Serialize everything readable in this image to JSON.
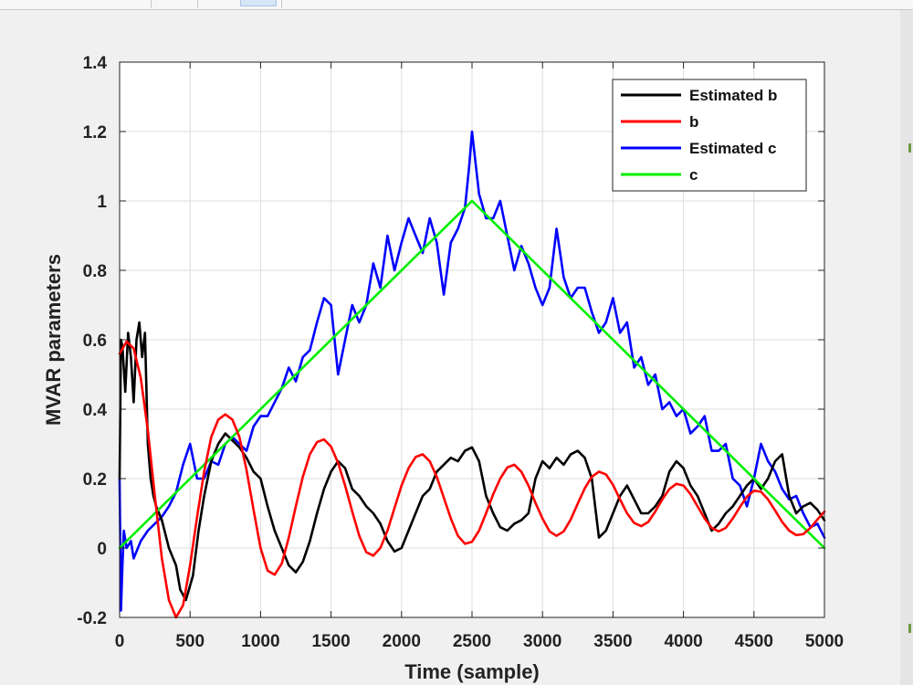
{
  "window": {
    "accent": "#d6e6f7"
  },
  "toolbar": {
    "tools": [
      {
        "name": "brush-icon"
      },
      {
        "name": "data-tips-icon"
      },
      {
        "name": "pan-icon"
      },
      {
        "name": "zoom-in-icon"
      },
      {
        "name": "zoom-out-icon"
      },
      {
        "name": "home-icon"
      }
    ],
    "icon_color": "#b8b8b8"
  },
  "chart_data": {
    "type": "line",
    "title": "",
    "xlabel": "Time (sample)",
    "ylabel": "MVAR parameters",
    "xlim": [
      0,
      5000
    ],
    "ylim": [
      -0.2,
      1.4
    ],
    "xticks": [
      0,
      500,
      1000,
      1500,
      2000,
      2500,
      3000,
      3500,
      4000,
      4500,
      5000
    ],
    "yticks": [
      -0.2,
      0,
      0.2,
      0.4,
      0.6,
      0.8,
      1,
      1.2,
      1.4
    ],
    "grid": true,
    "legend_position": "top-right",
    "series": [
      {
        "name": "Estimated b",
        "color": "#000000",
        "x": [
          0,
          10,
          20,
          40,
          60,
          80,
          100,
          120,
          140,
          160,
          180,
          200,
          220,
          240,
          260,
          300,
          350,
          400,
          430,
          470,
          520,
          560,
          600,
          650,
          700,
          750,
          800,
          850,
          900,
          950,
          1000,
          1050,
          1100,
          1150,
          1200,
          1250,
          1300,
          1350,
          1400,
          1450,
          1500,
          1550,
          1600,
          1650,
          1700,
          1750,
          1800,
          1850,
          1900,
          1950,
          2000,
          2050,
          2100,
          2150,
          2200,
          2250,
          2300,
          2350,
          2400,
          2450,
          2500,
          2550,
          2600,
          2650,
          2700,
          2750,
          2800,
          2850,
          2900,
          2950,
          3000,
          3050,
          3100,
          3150,
          3200,
          3250,
          3300,
          3350,
          3400,
          3450,
          3500,
          3550,
          3600,
          3650,
          3700,
          3750,
          3800,
          3850,
          3900,
          3950,
          4000,
          4050,
          4100,
          4150,
          4200,
          4250,
          4300,
          4350,
          4400,
          4450,
          4500,
          4550,
          4600,
          4650,
          4700,
          4750,
          4800,
          4850,
          4900,
          4950,
          5000
        ],
        "y": [
          0.2,
          0.6,
          0.58,
          0.45,
          0.62,
          0.55,
          0.42,
          0.6,
          0.65,
          0.55,
          0.62,
          0.3,
          0.2,
          0.15,
          0.12,
          0.08,
          0.0,
          -0.05,
          -0.12,
          -0.15,
          -0.08,
          0.05,
          0.15,
          0.25,
          0.3,
          0.33,
          0.31,
          0.29,
          0.26,
          0.22,
          0.2,
          0.12,
          0.05,
          0.0,
          -0.05,
          -0.07,
          -0.04,
          0.02,
          0.1,
          0.17,
          0.22,
          0.25,
          0.23,
          0.17,
          0.15,
          0.12,
          0.1,
          0.07,
          0.02,
          -0.01,
          0.0,
          0.05,
          0.1,
          0.15,
          0.17,
          0.22,
          0.24,
          0.26,
          0.25,
          0.28,
          0.29,
          0.25,
          0.15,
          0.1,
          0.06,
          0.05,
          0.07,
          0.08,
          0.1,
          0.2,
          0.25,
          0.23,
          0.26,
          0.24,
          0.27,
          0.28,
          0.26,
          0.2,
          0.03,
          0.05,
          0.1,
          0.15,
          0.18,
          0.14,
          0.1,
          0.1,
          0.12,
          0.15,
          0.22,
          0.25,
          0.23,
          0.18,
          0.15,
          0.1,
          0.05,
          0.07,
          0.1,
          0.12,
          0.15,
          0.18,
          0.2,
          0.17,
          0.2,
          0.25,
          0.27,
          0.15,
          0.1,
          0.12,
          0.13,
          0.11,
          0.08
        ]
      },
      {
        "name": "b",
        "color": "#ff0000",
        "x": [
          0,
          50,
          100,
          150,
          200,
          250,
          300,
          350,
          400,
          450,
          500,
          550,
          600,
          650,
          700,
          750,
          800,
          850,
          900,
          950,
          1000,
          1050,
          1100,
          1150,
          1200,
          1250,
          1300,
          1350,
          1400,
          1450,
          1500,
          1550,
          1600,
          1650,
          1700,
          1750,
          1800,
          1850,
          1900,
          1950,
          2000,
          2050,
          2100,
          2150,
          2200,
          2250,
          2300,
          2350,
          2400,
          2450,
          2500,
          2550,
          2600,
          2650,
          2700,
          2750,
          2800,
          2850,
          2900,
          2950,
          3000,
          3050,
          3100,
          3150,
          3200,
          3250,
          3300,
          3350,
          3400,
          3450,
          3500,
          3550,
          3600,
          3650,
          3700,
          3750,
          3800,
          3850,
          3900,
          3950,
          4000,
          4050,
          4100,
          4150,
          4200,
          4250,
          4300,
          4350,
          4400,
          4450,
          4500,
          4550,
          4600,
          4650,
          4700,
          4750,
          4800,
          4850,
          4900,
          4950,
          5000
        ],
        "y": [
          0.56,
          0.595,
          0.575,
          0.49,
          0.34,
          0.15,
          -0.03,
          -0.15,
          -0.2,
          -0.165,
          -0.05,
          0.09,
          0.22,
          0.32,
          0.37,
          0.385,
          0.37,
          0.32,
          0.225,
          0.11,
          0.0,
          -0.065,
          -0.077,
          -0.045,
          0.03,
          0.12,
          0.205,
          0.27,
          0.305,
          0.313,
          0.292,
          0.245,
          0.18,
          0.105,
          0.035,
          -0.012,
          -0.022,
          0.0,
          0.05,
          0.115,
          0.18,
          0.23,
          0.262,
          0.27,
          0.25,
          0.205,
          0.145,
          0.085,
          0.035,
          0.012,
          0.018,
          0.05,
          0.1,
          0.155,
          0.2,
          0.232,
          0.24,
          0.22,
          0.18,
          0.13,
          0.085,
          0.048,
          0.035,
          0.048,
          0.082,
          0.128,
          0.172,
          0.205,
          0.22,
          0.212,
          0.182,
          0.14,
          0.1,
          0.072,
          0.063,
          0.075,
          0.105,
          0.14,
          0.17,
          0.185,
          0.18,
          0.155,
          0.12,
          0.085,
          0.058,
          0.048,
          0.058,
          0.085,
          0.118,
          0.148,
          0.165,
          0.162,
          0.14,
          0.108,
          0.075,
          0.05,
          0.037,
          0.04,
          0.058,
          0.082,
          0.105
        ]
      },
      {
        "name": "Estimated c",
        "color": "#0000ff",
        "x": [
          0,
          10,
          20,
          30,
          50,
          80,
          100,
          150,
          200,
          250,
          300,
          350,
          400,
          450,
          500,
          550,
          600,
          650,
          700,
          750,
          800,
          850,
          900,
          950,
          1000,
          1050,
          1100,
          1150,
          1200,
          1250,
          1300,
          1350,
          1400,
          1450,
          1500,
          1550,
          1600,
          1650,
          1700,
          1750,
          1800,
          1850,
          1900,
          1950,
          2000,
          2050,
          2100,
          2150,
          2200,
          2250,
          2300,
          2350,
          2400,
          2450,
          2480,
          2500,
          2550,
          2600,
          2650,
          2700,
          2750,
          2800,
          2850,
          2900,
          2950,
          3000,
          3050,
          3100,
          3150,
          3200,
          3250,
          3300,
          3350,
          3400,
          3450,
          3500,
          3550,
          3600,
          3650,
          3700,
          3750,
          3800,
          3850,
          3900,
          3950,
          4000,
          4050,
          4100,
          4150,
          4200,
          4250,
          4300,
          4350,
          4400,
          4450,
          4500,
          4550,
          4600,
          4650,
          4700,
          4750,
          4800,
          4850,
          4900,
          4950,
          5000
        ],
        "y": [
          0.2,
          -0.18,
          -0.05,
          0.05,
          0.0,
          0.02,
          -0.03,
          0.02,
          0.05,
          0.07,
          0.09,
          0.12,
          0.16,
          0.24,
          0.3,
          0.2,
          0.2,
          0.25,
          0.24,
          0.3,
          0.32,
          0.3,
          0.28,
          0.35,
          0.38,
          0.38,
          0.42,
          0.46,
          0.52,
          0.48,
          0.55,
          0.57,
          0.65,
          0.72,
          0.7,
          0.5,
          0.6,
          0.7,
          0.65,
          0.7,
          0.82,
          0.75,
          0.9,
          0.8,
          0.88,
          0.95,
          0.9,
          0.85,
          0.95,
          0.88,
          0.73,
          0.88,
          0.92,
          0.98,
          1.1,
          1.2,
          1.02,
          0.95,
          0.95,
          1.0,
          0.9,
          0.8,
          0.87,
          0.82,
          0.75,
          0.7,
          0.75,
          0.92,
          0.78,
          0.72,
          0.75,
          0.75,
          0.68,
          0.62,
          0.65,
          0.72,
          0.62,
          0.65,
          0.52,
          0.55,
          0.47,
          0.5,
          0.4,
          0.42,
          0.38,
          0.4,
          0.33,
          0.35,
          0.38,
          0.28,
          0.28,
          0.3,
          0.2,
          0.18,
          0.12,
          0.2,
          0.3,
          0.25,
          0.22,
          0.17,
          0.14,
          0.15,
          0.1,
          0.06,
          0.07,
          0.03
        ]
      },
      {
        "name": "c",
        "color": "#00ee00",
        "x": [
          0,
          2500,
          5000
        ],
        "y": [
          0.0,
          1.0,
          0.0
        ]
      }
    ]
  }
}
